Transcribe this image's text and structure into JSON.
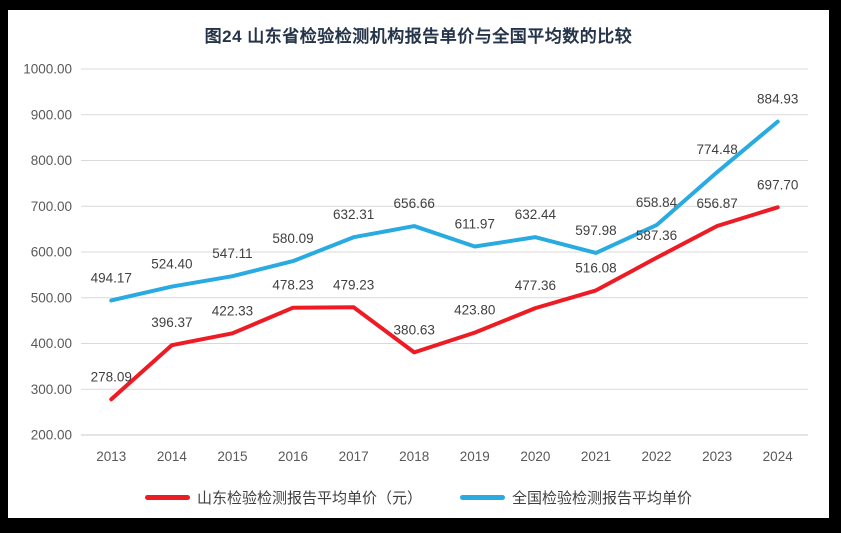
{
  "title": "图24  山东省检验检测机构报告单价与全国平均数的比较",
  "colors": {
    "frame": "#000000",
    "background": "#ffffff",
    "title_text": "#253449",
    "gridline": "#d9d9d9",
    "axis_line": "#c9c9c9",
    "axis_text": "#595959",
    "data_label_text": "#404040",
    "shandong_series": "#ed1c24",
    "national_series": "#29abe2"
  },
  "chart_data": {
    "type": "line",
    "title": "图24  山东省检验检测机构报告单价与全国平均数的比较",
    "categories": [
      "2013",
      "2014",
      "2015",
      "2016",
      "2017",
      "2018",
      "2019",
      "2020",
      "2021",
      "2022",
      "2023",
      "2024"
    ],
    "series": [
      {
        "name": "山东检验检测报告平均单价（元）",
        "color": "#ed1c24",
        "values": [
          278.09,
          396.37,
          422.33,
          478.23,
          479.23,
          380.63,
          423.8,
          477.36,
          516.08,
          587.36,
          656.87,
          697.7
        ]
      },
      {
        "name": "全国检验检测报告平均单价",
        "color": "#29abe2",
        "values": [
          494.17,
          524.4,
          547.11,
          580.09,
          632.31,
          656.66,
          611.97,
          632.44,
          597.98,
          658.84,
          774.48,
          884.93
        ]
      }
    ],
    "xlabel": "",
    "ylabel": "",
    "ylim": [
      200,
      1000
    ],
    "ytick_step": 100,
    "ytick_labels": [
      "200.00",
      "300.00",
      "400.00",
      "500.00",
      "600.00",
      "700.00",
      "800.00",
      "900.00",
      "1000.00"
    ],
    "value_decimals": 2,
    "grid": true,
    "data_labels": true,
    "legend_position": "bottom"
  },
  "legend": {
    "items": [
      {
        "label": "山东检验检测报告平均单价（元）",
        "color": "#ed1c24"
      },
      {
        "label": "全国检验检测报告平均单价",
        "color": "#29abe2"
      }
    ]
  }
}
